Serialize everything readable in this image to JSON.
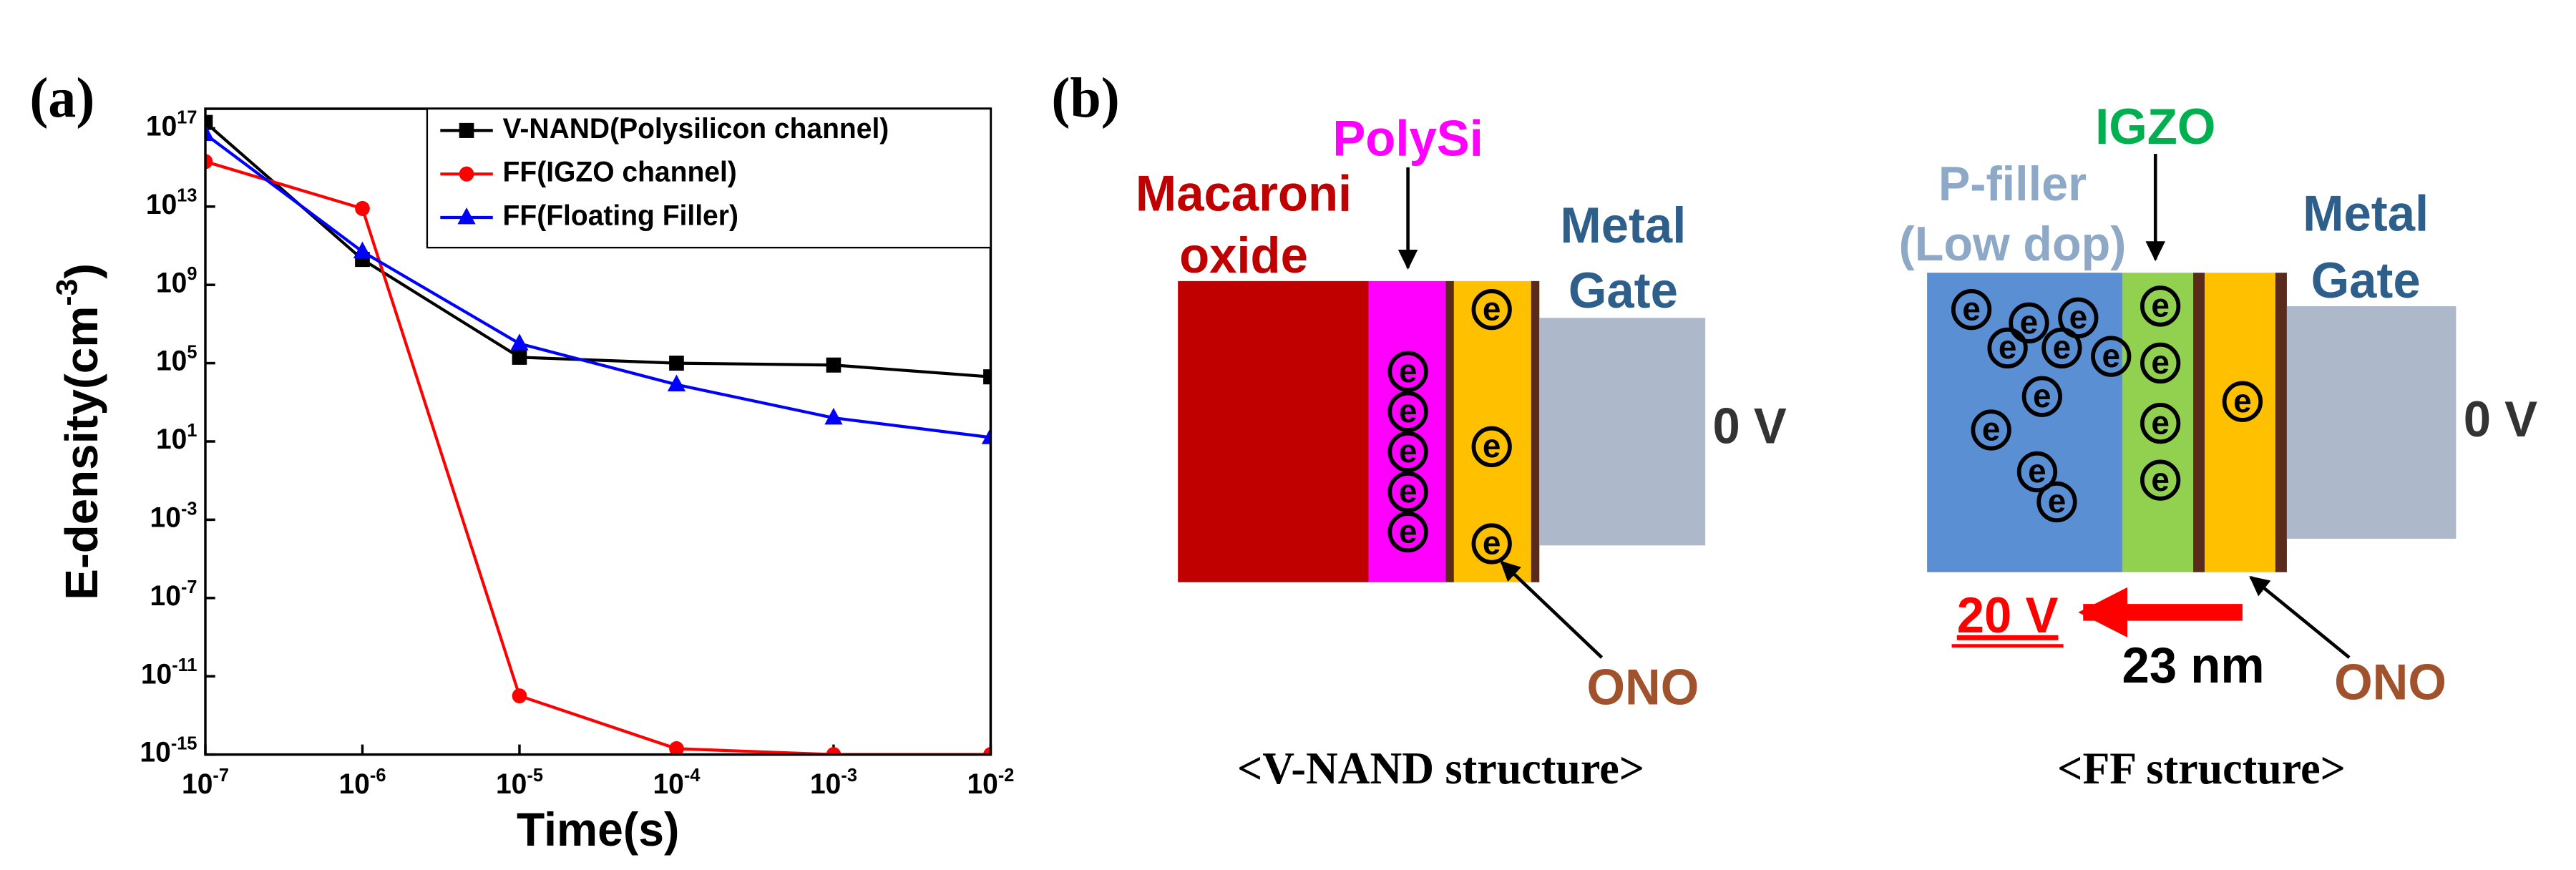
{
  "chart_data": {
    "type": "line",
    "panel_label": "(a)",
    "x_label": "Time(s)",
    "y_label": "E-density(cm^-3^)",
    "x": [
      1e-07,
      1e-06,
      1e-05,
      0.0001,
      0.001,
      0.01
    ],
    "xlim": [
      1e-07,
      0.01
    ],
    "ylim": [
      1e-15,
      1e+18
    ],
    "xscale": "log",
    "yscale": "log",
    "legend": "upper right",
    "xticks": [
      {
        "value": 1e-07,
        "label": "10^-7"
      },
      {
        "value": 1e-06,
        "label": "10^-6"
      },
      {
        "value": 1e-05,
        "label": "10^-5"
      },
      {
        "value": 0.0001,
        "label": "10^-4"
      },
      {
        "value": 0.001,
        "label": "10^-3"
      },
      {
        "value": 0.01,
        "label": "10^-2"
      }
    ],
    "yticks": [
      {
        "value": 1e-15,
        "label": "10^-15"
      },
      {
        "value": 1e-11,
        "label": "10^-11"
      },
      {
        "value": 1e-07,
        "label": "10^-7"
      },
      {
        "value": 0.001,
        "label": "10^-3"
      },
      {
        "value": 10,
        "label": "10^1"
      },
      {
        "value": 100000.0,
        "label": "10^5"
      },
      {
        "value": 1000000000.0,
        "label": "10^9"
      },
      {
        "value": 10000000000000.0,
        "label": "10^13"
      },
      {
        "value": 1e+17,
        "label": "10^17"
      }
    ],
    "series": [
      {
        "name": "V-NAND(Polysilicon channel)",
        "color": "#000000",
        "marker": "square",
        "values": [
          2e+17,
          20000000000.0,
          200000.0,
          100000.0,
          80000.0,
          20000.0
        ]
      },
      {
        "name": "FF(IGZO channel)",
        "color": "#ff0000",
        "marker": "circle",
        "values": [
          2000000000000000.0,
          8000000000000.0,
          1e-12,
          2e-15,
          1e-15,
          1e-15
        ]
      },
      {
        "name": "FF(Floating Filler)",
        "color": "#0000ff",
        "marker": "triangle",
        "values": [
          5e+16,
          50000000000.0,
          1000000.0,
          8000.0,
          160,
          16
        ]
      }
    ]
  },
  "diagram": {
    "panel_label": "(b)",
    "electron": "e",
    "left": {
      "oxide": [
        "Macaroni",
        "oxide"
      ],
      "channel": "PolySi",
      "gate": [
        "Metal",
        "Gate"
      ],
      "gate_voltage": "0 V",
      "ono": "ONO",
      "caption": "<V-NAND structure>"
    },
    "right": {
      "filler": [
        "P-filler",
        "(Low dop)"
      ],
      "channel": "IGZO",
      "gate": [
        "Metal",
        "Gate"
      ],
      "gate_voltage": "0 V",
      "filler_voltage": "20 V",
      "distance": "23 nm",
      "ono": "ONO",
      "caption": "<FF structure>"
    }
  }
}
